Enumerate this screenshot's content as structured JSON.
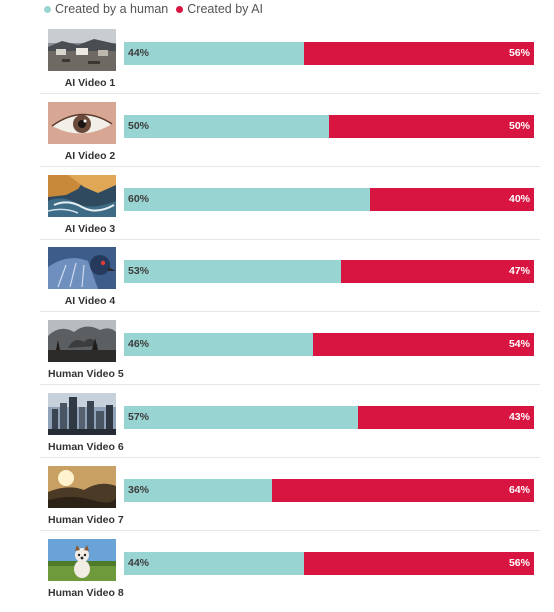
{
  "legend": {
    "human": {
      "label": "Created by a human",
      "color": "#98d4d2"
    },
    "ai": {
      "label": "Created by AI",
      "color": "#d81541"
    }
  },
  "chart_data": {
    "type": "bar",
    "orientation": "horizontal",
    "stacked": true,
    "normalized_percent": true,
    "categories": [
      "AI Video 1",
      "AI Video 2",
      "AI Video 3",
      "AI Video 4",
      "Human Video 5",
      "Human Video 6",
      "Human Video 7",
      "Human Video 8"
    ],
    "series": [
      {
        "name": "Created by a human",
        "color": "#98d4d2",
        "values": [
          44,
          50,
          60,
          53,
          46,
          57,
          36,
          44
        ],
        "labels": [
          "44%",
          "50%",
          "60%",
          "53%",
          "46%",
          "57%",
          "36%",
          "44%"
        ]
      },
      {
        "name": "Created by AI",
        "color": "#d81541",
        "values": [
          56,
          50,
          40,
          47,
          54,
          43,
          64,
          56
        ],
        "labels": [
          "56%",
          "50%",
          "40%",
          "47%",
          "54%",
          "43%",
          "64%",
          "56%"
        ]
      }
    ],
    "xlim": [
      0,
      100
    ],
    "legend_position": "top-left",
    "thumbnails": [
      "camp-scene-icon",
      "eye-closeup-icon",
      "coast-waves-icon",
      "bird-plumage-icon",
      "smoke-landscape-icon",
      "city-skyline-icon",
      "sunset-hills-icon",
      "dog-field-icon"
    ]
  }
}
